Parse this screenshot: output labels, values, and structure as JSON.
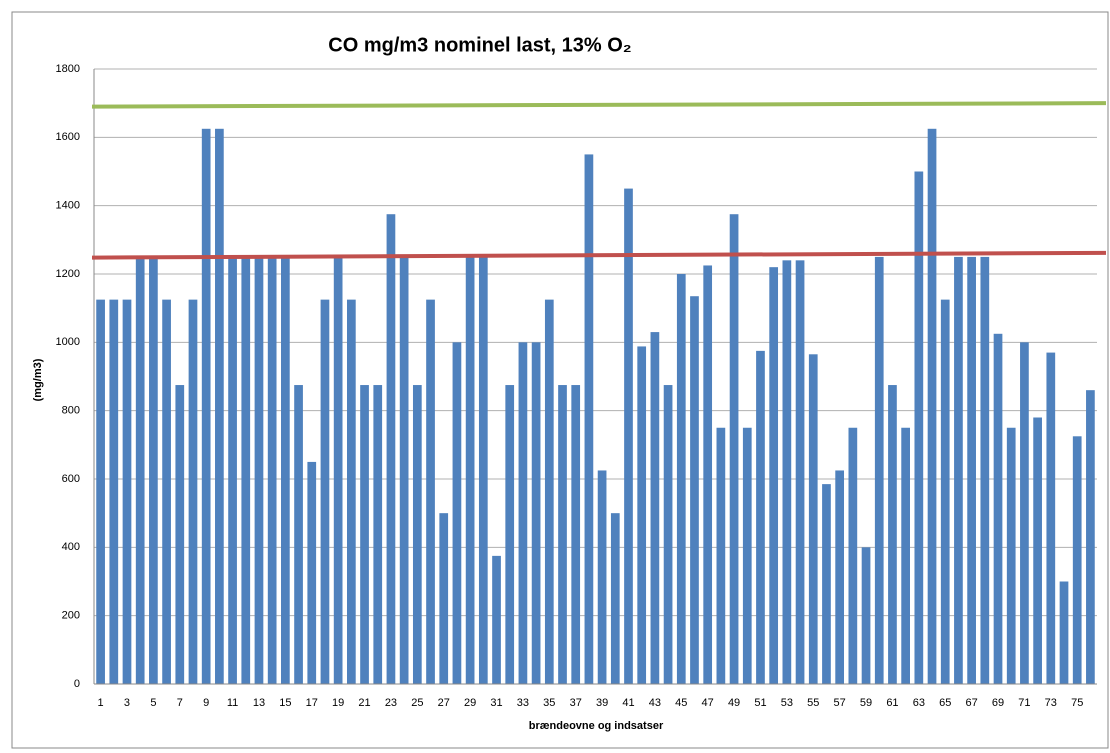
{
  "chart_data": {
    "type": "bar",
    "title": "CO mg/m3 nominel last, 13% O₂",
    "x_label": "brændeovne og indsatser",
    "y_label": "(mg/m3)",
    "categories": [
      "1",
      null,
      "3",
      null,
      "5",
      null,
      "7",
      null,
      "9",
      null,
      "11",
      null,
      "13",
      null,
      "15",
      null,
      "17",
      null,
      "19",
      null,
      "21",
      null,
      "23",
      null,
      "25",
      null,
      "27",
      null,
      "29",
      null,
      "31",
      null,
      "33",
      null,
      "35",
      null,
      "37",
      null,
      "39",
      null,
      "41",
      null,
      "43",
      null,
      "45",
      null,
      "47",
      null,
      "49",
      null,
      "51",
      null,
      "53",
      null,
      "55",
      null,
      "57",
      null,
      "59",
      null,
      "61",
      null,
      "63",
      null,
      "65",
      null,
      "67",
      null,
      "69",
      null,
      "71",
      null,
      "73",
      null,
      "75",
      null
    ],
    "values": [
      1125,
      1125,
      1125,
      1250,
      1250,
      1125,
      875,
      1125,
      1625,
      1625,
      1250,
      1250,
      1250,
      1250,
      1250,
      875,
      650,
      1125,
      1250,
      1125,
      875,
      875,
      1375,
      1250,
      875,
      1125,
      500,
      1000,
      1250,
      1250,
      375,
      875,
      1000,
      1000,
      1125,
      875,
      875,
      1550,
      625,
      500,
      1450,
      988,
      1030,
      875,
      1200,
      1135,
      1225,
      750,
      1375,
      750,
      975,
      1220,
      1240,
      1240,
      965,
      585,
      625,
      750,
      400,
      1250,
      875,
      750,
      1500,
      1625,
      1125,
      1250,
      1250,
      1250,
      1025,
      750,
      1000,
      780,
      970,
      300,
      725,
      860
    ],
    "color": "#4f81bd",
    "ylim": [
      0,
      1800
    ],
    "yticks": [
      0,
      200,
      400,
      600,
      800,
      1000,
      1200,
      1400,
      1600,
      1800
    ],
    "grid": true,
    "lines": [
      {
        "color": "#9bbb59",
        "values": [
          1690,
          1700
        ]
      },
      {
        "color": "#c0504d",
        "values": [
          1248,
          1262
        ]
      }
    ]
  }
}
